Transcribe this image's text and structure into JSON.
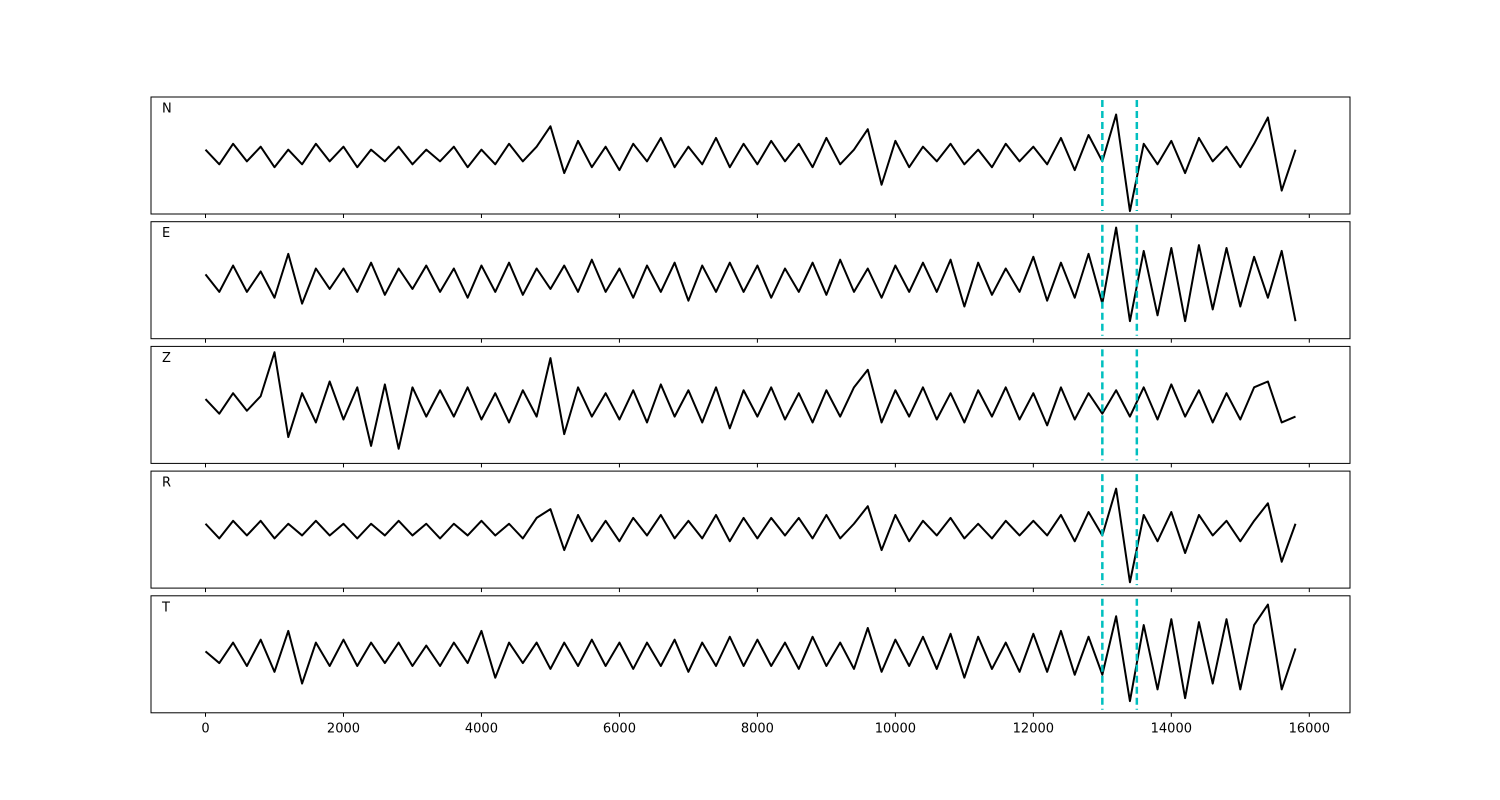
{
  "chart_data": {
    "type": "line",
    "x": [
      0,
      200,
      400,
      600,
      800,
      1000,
      1200,
      1400,
      1600,
      1800,
      2000,
      2200,
      2400,
      2600,
      2800,
      3000,
      3200,
      3400,
      3600,
      3800,
      4000,
      4200,
      4400,
      4600,
      4800,
      5000,
      5200,
      5400,
      5600,
      5800,
      6000,
      6200,
      6400,
      6600,
      6800,
      7000,
      7200,
      7400,
      7600,
      7800,
      8000,
      8200,
      8400,
      8600,
      8800,
      9000,
      9200,
      9400,
      9600,
      9800,
      10000,
      10200,
      10400,
      10600,
      10800,
      11000,
      11200,
      11400,
      11600,
      11800,
      12000,
      12200,
      12400,
      12600,
      12800,
      13000,
      13200,
      13400,
      13600,
      13800,
      14000,
      14200,
      14400,
      14600,
      14800,
      15000,
      15200,
      15400,
      15600,
      15800
    ],
    "xlim": [
      -790,
      16590
    ],
    "xticks": [
      0,
      2000,
      4000,
      6000,
      8000,
      10000,
      12000,
      14000,
      16000
    ],
    "ylim": [
      -1,
      1
    ],
    "vlines": [
      13000,
      13500
    ],
    "vline_color": "#00bfbf",
    "series": [
      {
        "name": "N",
        "color": "#000000",
        "values": [
          0.1,
          -0.15,
          0.2,
          -0.1,
          0.15,
          -0.2,
          0.1,
          -0.15,
          0.2,
          -0.1,
          0.15,
          -0.2,
          0.1,
          -0.1,
          0.15,
          -0.15,
          0.1,
          -0.1,
          0.15,
          -0.2,
          0.1,
          -0.15,
          0.2,
          -0.1,
          0.15,
          0.5,
          -0.3,
          0.25,
          -0.2,
          0.15,
          -0.25,
          0.2,
          -0.1,
          0.3,
          -0.2,
          0.15,
          -0.15,
          0.3,
          -0.2,
          0.2,
          -0.15,
          0.25,
          -0.1,
          0.2,
          -0.2,
          0.3,
          -0.15,
          0.1,
          0.45,
          -0.5,
          0.25,
          -0.2,
          0.15,
          -0.1,
          0.2,
          -0.15,
          0.1,
          -0.2,
          0.2,
          -0.1,
          0.15,
          -0.15,
          0.3,
          -0.25,
          0.35,
          -0.1,
          0.7,
          -0.95,
          0.2,
          -0.15,
          0.25,
          -0.3,
          0.3,
          -0.1,
          0.15,
          -0.2,
          0.2,
          0.65,
          -0.6,
          0.1
        ]
      },
      {
        "name": "E",
        "color": "#000000",
        "values": [
          0.1,
          -0.2,
          0.25,
          -0.2,
          0.15,
          -0.3,
          0.45,
          -0.4,
          0.2,
          -0.15,
          0.2,
          -0.2,
          0.3,
          -0.25,
          0.2,
          -0.15,
          0.25,
          -0.2,
          0.2,
          -0.3,
          0.25,
          -0.2,
          0.3,
          -0.25,
          0.2,
          -0.15,
          0.25,
          -0.2,
          0.35,
          -0.2,
          0.2,
          -0.3,
          0.25,
          -0.2,
          0.3,
          -0.35,
          0.25,
          -0.2,
          0.3,
          -0.2,
          0.25,
          -0.3,
          0.2,
          -0.2,
          0.3,
          -0.25,
          0.35,
          -0.2,
          0.2,
          -0.3,
          0.25,
          -0.2,
          0.3,
          -0.2,
          0.35,
          -0.45,
          0.3,
          -0.25,
          0.2,
          -0.2,
          0.4,
          -0.35,
          0.3,
          -0.3,
          0.45,
          -0.4,
          0.9,
          -0.7,
          0.5,
          -0.6,
          0.55,
          -0.7,
          0.6,
          -0.5,
          0.55,
          -0.45,
          0.4,
          -0.3,
          0.5,
          -0.7
        ]
      },
      {
        "name": "Z",
        "color": "#000000",
        "values": [
          0.1,
          -0.15,
          0.2,
          -0.1,
          0.15,
          0.9,
          -0.55,
          0.2,
          -0.3,
          0.4,
          -0.25,
          0.3,
          -0.7,
          0.35,
          -0.75,
          0.3,
          -0.2,
          0.25,
          -0.2,
          0.3,
          -0.25,
          0.2,
          -0.3,
          0.25,
          -0.2,
          0.8,
          -0.5,
          0.3,
          -0.2,
          0.2,
          -0.25,
          0.25,
          -0.3,
          0.35,
          -0.2,
          0.25,
          -0.3,
          0.3,
          -0.4,
          0.25,
          -0.2,
          0.3,
          -0.25,
          0.2,
          -0.3,
          0.25,
          -0.2,
          0.3,
          0.6,
          -0.3,
          0.25,
          -0.2,
          0.3,
          -0.25,
          0.2,
          -0.3,
          0.25,
          -0.2,
          0.3,
          -0.25,
          0.2,
          -0.35,
          0.3,
          -0.25,
          0.2,
          -0.15,
          0.25,
          -0.2,
          0.3,
          -0.25,
          0.35,
          -0.2,
          0.25,
          -0.3,
          0.2,
          -0.25,
          0.3,
          0.4,
          -0.3,
          -0.2
        ]
      },
      {
        "name": "R",
        "color": "#000000",
        "values": [
          0.1,
          -0.15,
          0.15,
          -0.1,
          0.15,
          -0.15,
          0.1,
          -0.1,
          0.15,
          -0.1,
          0.1,
          -0.15,
          0.1,
          -0.1,
          0.15,
          -0.1,
          0.1,
          -0.15,
          0.1,
          -0.1,
          0.15,
          -0.1,
          0.1,
          -0.15,
          0.2,
          0.35,
          -0.35,
          0.25,
          -0.2,
          0.15,
          -0.2,
          0.2,
          -0.1,
          0.25,
          -0.15,
          0.15,
          -0.15,
          0.25,
          -0.2,
          0.2,
          -0.15,
          0.2,
          -0.1,
          0.2,
          -0.15,
          0.25,
          -0.15,
          0.1,
          0.4,
          -0.35,
          0.25,
          -0.2,
          0.15,
          -0.1,
          0.2,
          -0.15,
          0.1,
          -0.15,
          0.15,
          -0.1,
          0.15,
          -0.1,
          0.25,
          -0.2,
          0.3,
          -0.1,
          0.7,
          -0.9,
          0.25,
          -0.2,
          0.3,
          -0.4,
          0.25,
          -0.1,
          0.15,
          -0.2,
          0.15,
          0.45,
          -0.55,
          0.1
        ]
      },
      {
        "name": "T",
        "color": "#000000",
        "values": [
          0.05,
          -0.15,
          0.2,
          -0.2,
          0.25,
          -0.3,
          0.4,
          -0.5,
          0.2,
          -0.2,
          0.25,
          -0.2,
          0.2,
          -0.15,
          0.2,
          -0.2,
          0.15,
          -0.2,
          0.2,
          -0.15,
          0.4,
          -0.4,
          0.2,
          -0.15,
          0.2,
          -0.25,
          0.2,
          -0.2,
          0.25,
          -0.2,
          0.2,
          -0.25,
          0.2,
          -0.2,
          0.25,
          -0.3,
          0.2,
          -0.2,
          0.3,
          -0.2,
          0.25,
          -0.2,
          0.2,
          -0.25,
          0.3,
          -0.2,
          0.2,
          -0.25,
          0.45,
          -0.3,
          0.25,
          -0.2,
          0.3,
          -0.25,
          0.35,
          -0.4,
          0.3,
          -0.25,
          0.2,
          -0.3,
          0.35,
          -0.3,
          0.4,
          -0.35,
          0.3,
          -0.35,
          0.65,
          -0.8,
          0.5,
          -0.6,
          0.6,
          -0.75,
          0.55,
          -0.5,
          0.6,
          -0.6,
          0.5,
          0.85,
          -0.6,
          0.1
        ]
      }
    ]
  }
}
